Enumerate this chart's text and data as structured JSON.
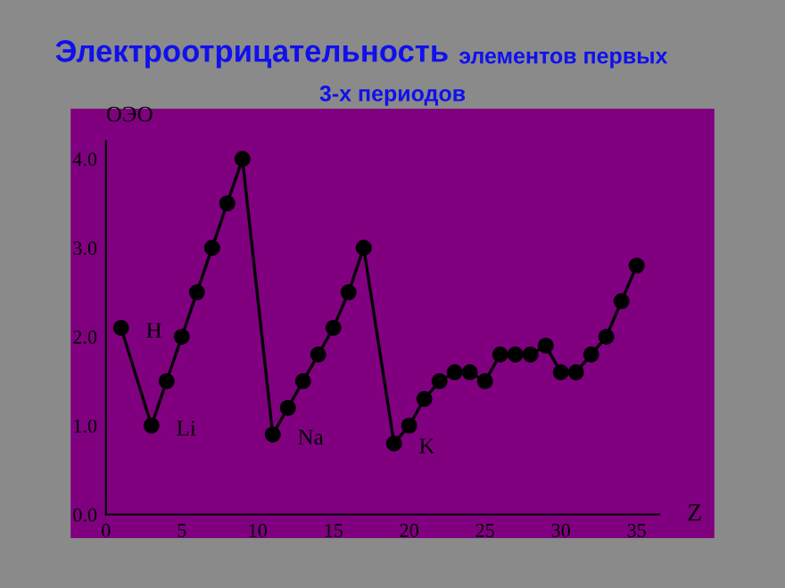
{
  "chart_data": {
    "type": "line",
    "title": "Электроотрицательность",
    "subtitle": "элементов первых 3-х периодов",
    "xlabel": "Z",
    "ylabel": "ОЭО",
    "x": [
      1,
      3,
      4,
      5,
      6,
      7,
      8,
      9,
      11,
      12,
      13,
      14,
      15,
      16,
      17,
      19,
      20,
      21,
      22,
      23,
      24,
      25,
      26,
      27,
      28,
      29,
      30,
      31,
      32,
      33,
      34,
      35
    ],
    "series": [
      {
        "color": "#000000",
        "values": [
          2.1,
          1.0,
          1.5,
          2.0,
          2.5,
          3.0,
          3.5,
          4.0,
          0.9,
          1.2,
          1.5,
          1.8,
          2.1,
          2.5,
          3.0,
          0.8,
          1.0,
          1.3,
          1.5,
          1.6,
          1.6,
          1.5,
          1.8,
          1.8,
          1.8,
          1.9,
          1.6,
          1.6,
          1.8,
          2.0,
          2.4,
          2.8
        ]
      }
    ],
    "annotations": [
      {
        "text": "H",
        "x": 1,
        "y": 2.1
      },
      {
        "text": "Li",
        "x": 3,
        "y": 1.0
      },
      {
        "text": "Na",
        "x": 11,
        "y": 0.9
      },
      {
        "text": "K",
        "x": 19,
        "y": 0.8
      }
    ],
    "xlim": [
      0,
      36.5
    ],
    "ylim": [
      0,
      4.2
    ],
    "xticks": [
      0,
      5,
      10,
      15,
      20,
      25,
      30,
      35
    ],
    "yticks": [
      {
        "value": 0,
        "label": "0.0"
      },
      {
        "value": 1,
        "label": "1.0"
      },
      {
        "value": 2,
        "label": "2.0"
      },
      {
        "value": 3,
        "label": "3.0"
      },
      {
        "value": 4,
        "label": "4.0"
      }
    ],
    "marker": "circle",
    "line_style": "solid",
    "grid": false
  }
}
